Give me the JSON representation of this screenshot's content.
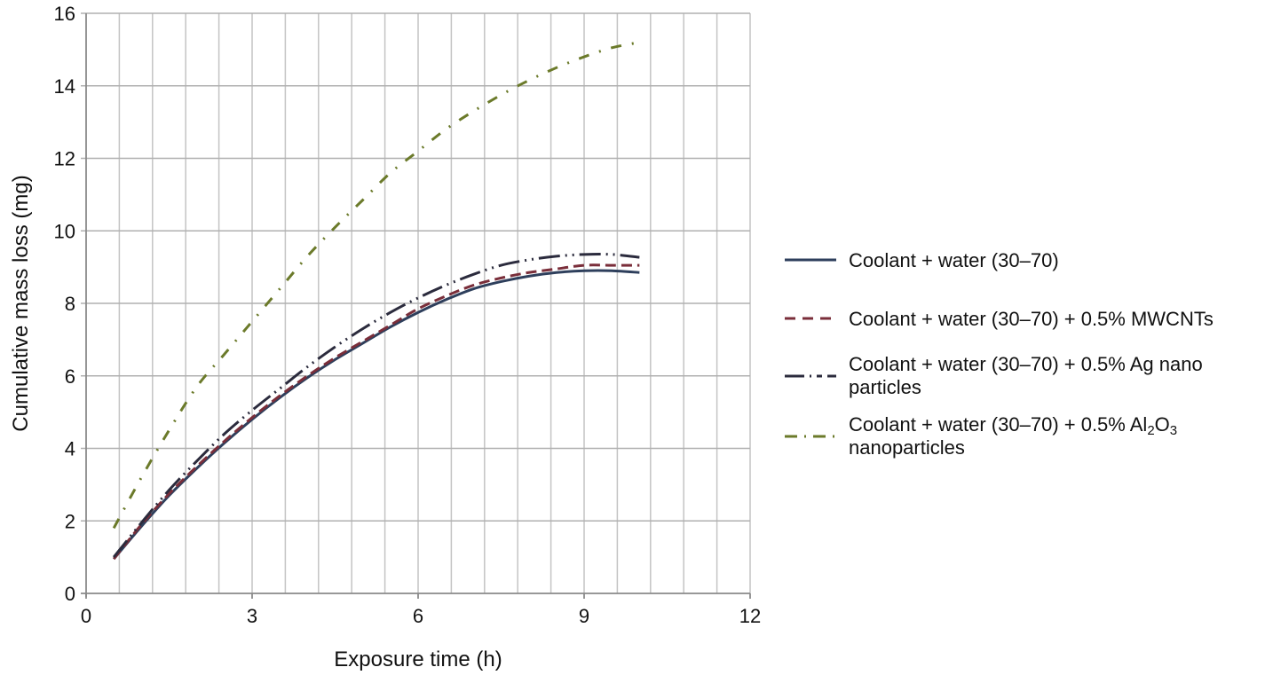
{
  "chart_data": {
    "type": "line",
    "title": "",
    "xlabel": "Exposure time (h)",
    "ylabel": "Cumulative mass loss (mg)",
    "xlim": [
      0,
      12
    ],
    "ylim": [
      0,
      16
    ],
    "xticks": [
      0,
      3,
      6,
      9,
      12
    ],
    "yticks": [
      0,
      2,
      4,
      6,
      8,
      10,
      12,
      14,
      16
    ],
    "grid": true,
    "legend_position": "right",
    "x": [
      0.5,
      1,
      1.5,
      2,
      2.5,
      3,
      3.5,
      4,
      4.5,
      5,
      5.5,
      6,
      6.5,
      7,
      7.5,
      8,
      8.5,
      9,
      9.5,
      10
    ],
    "series": [
      {
        "name": "Coolant + water (30–70)",
        "style": "solid",
        "color": "#2e3f5c",
        "values": [
          0.95,
          1.85,
          2.7,
          3.45,
          4.15,
          4.8,
          5.4,
          5.95,
          6.45,
          6.9,
          7.35,
          7.75,
          8.1,
          8.4,
          8.6,
          8.75,
          8.85,
          8.9,
          8.9,
          8.85
        ]
      },
      {
        "name": "Coolant + water (30–70) + 0.5% MWCNTs",
        "style": "dashed",
        "color": "#7a2e3a",
        "values": [
          0.95,
          1.9,
          2.75,
          3.5,
          4.2,
          4.85,
          5.45,
          6.0,
          6.5,
          6.95,
          7.4,
          7.85,
          8.2,
          8.5,
          8.7,
          8.85,
          8.95,
          9.05,
          9.05,
          9.05
        ]
      },
      {
        "name": "Coolant + water (30–70) + 0.5% Ag nano particles",
        "style": "dash-dot-dot",
        "color": "#2b2b3d",
        "values": [
          1.0,
          1.95,
          2.85,
          3.65,
          4.4,
          5.05,
          5.65,
          6.25,
          6.8,
          7.3,
          7.75,
          8.15,
          8.5,
          8.8,
          9.05,
          9.2,
          9.3,
          9.35,
          9.35,
          9.27
        ]
      },
      {
        "name": "Coolant + water (30–70) + 0.5% Al2O3 nanoparticles",
        "style": "dash-dot",
        "color": "#6b7a2a",
        "values": [
          1.8,
          3.2,
          4.5,
          5.7,
          6.6,
          7.5,
          8.4,
          9.3,
          10.1,
          10.85,
          11.6,
          12.2,
          12.8,
          13.3,
          13.75,
          14.15,
          14.5,
          14.8,
          15.05,
          15.2
        ]
      }
    ]
  },
  "legend": {
    "items": [
      {
        "label": "Coolant + water (30–70)"
      },
      {
        "label": "Coolant + water (30–70) + 0.5% MWCNTs"
      },
      {
        "label_line1": "Coolant + water (30–70) + 0.5% Ag nano",
        "label_line2": "particles"
      },
      {
        "label_prefix": "Coolant + water (30–70) + 0.5% Al",
        "sub1": "2",
        "mid": "O",
        "sub2": "3",
        "label_line2": "nanoparticles"
      }
    ]
  },
  "axes": {
    "x_title": "Exposure time (h)",
    "y_title": "Cumulative mass loss (mg)"
  }
}
